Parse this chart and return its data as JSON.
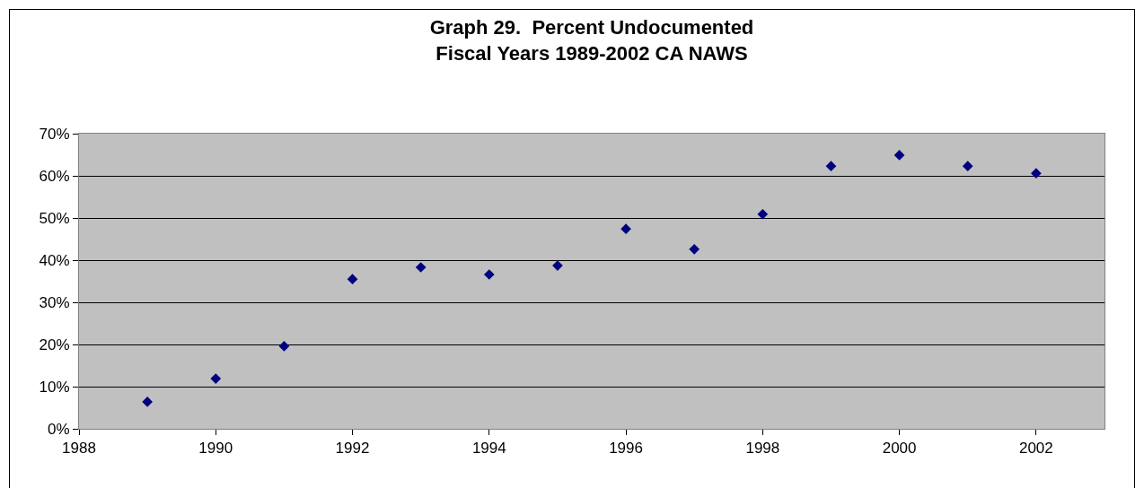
{
  "chart_data": {
    "type": "scatter",
    "title": "Graph 29.  Percent Undocumented\nFiscal Years 1989-2002 CA NAWS",
    "x": [
      1989,
      1990,
      1991,
      1992,
      1993,
      1994,
      1995,
      1996,
      1997,
      1998,
      1999,
      2000,
      2001,
      2002
    ],
    "values": [
      6.4,
      11.9,
      19.6,
      35.5,
      38.3,
      36.6,
      38.7,
      47.4,
      42.6,
      50.9,
      62.3,
      64.9,
      62.3,
      60.6
    ],
    "color": "#000080",
    "marker": "diamond",
    "grid": "y",
    "xlim": [
      1988,
      2003
    ],
    "xticks": [
      1988,
      1990,
      1992,
      1994,
      1996,
      1998,
      2000,
      2002
    ],
    "ylim": [
      0,
      70
    ],
    "yticks": [
      {
        "value": 0,
        "label": "0%"
      },
      {
        "value": 10,
        "label": "10%"
      },
      {
        "value": 20,
        "label": "20%"
      },
      {
        "value": 30,
        "label": "30%"
      },
      {
        "value": 40,
        "label": "40%"
      },
      {
        "value": 50,
        "label": "50%"
      },
      {
        "value": 60,
        "label": "60%"
      },
      {
        "value": 70,
        "label": "70%"
      }
    ]
  }
}
